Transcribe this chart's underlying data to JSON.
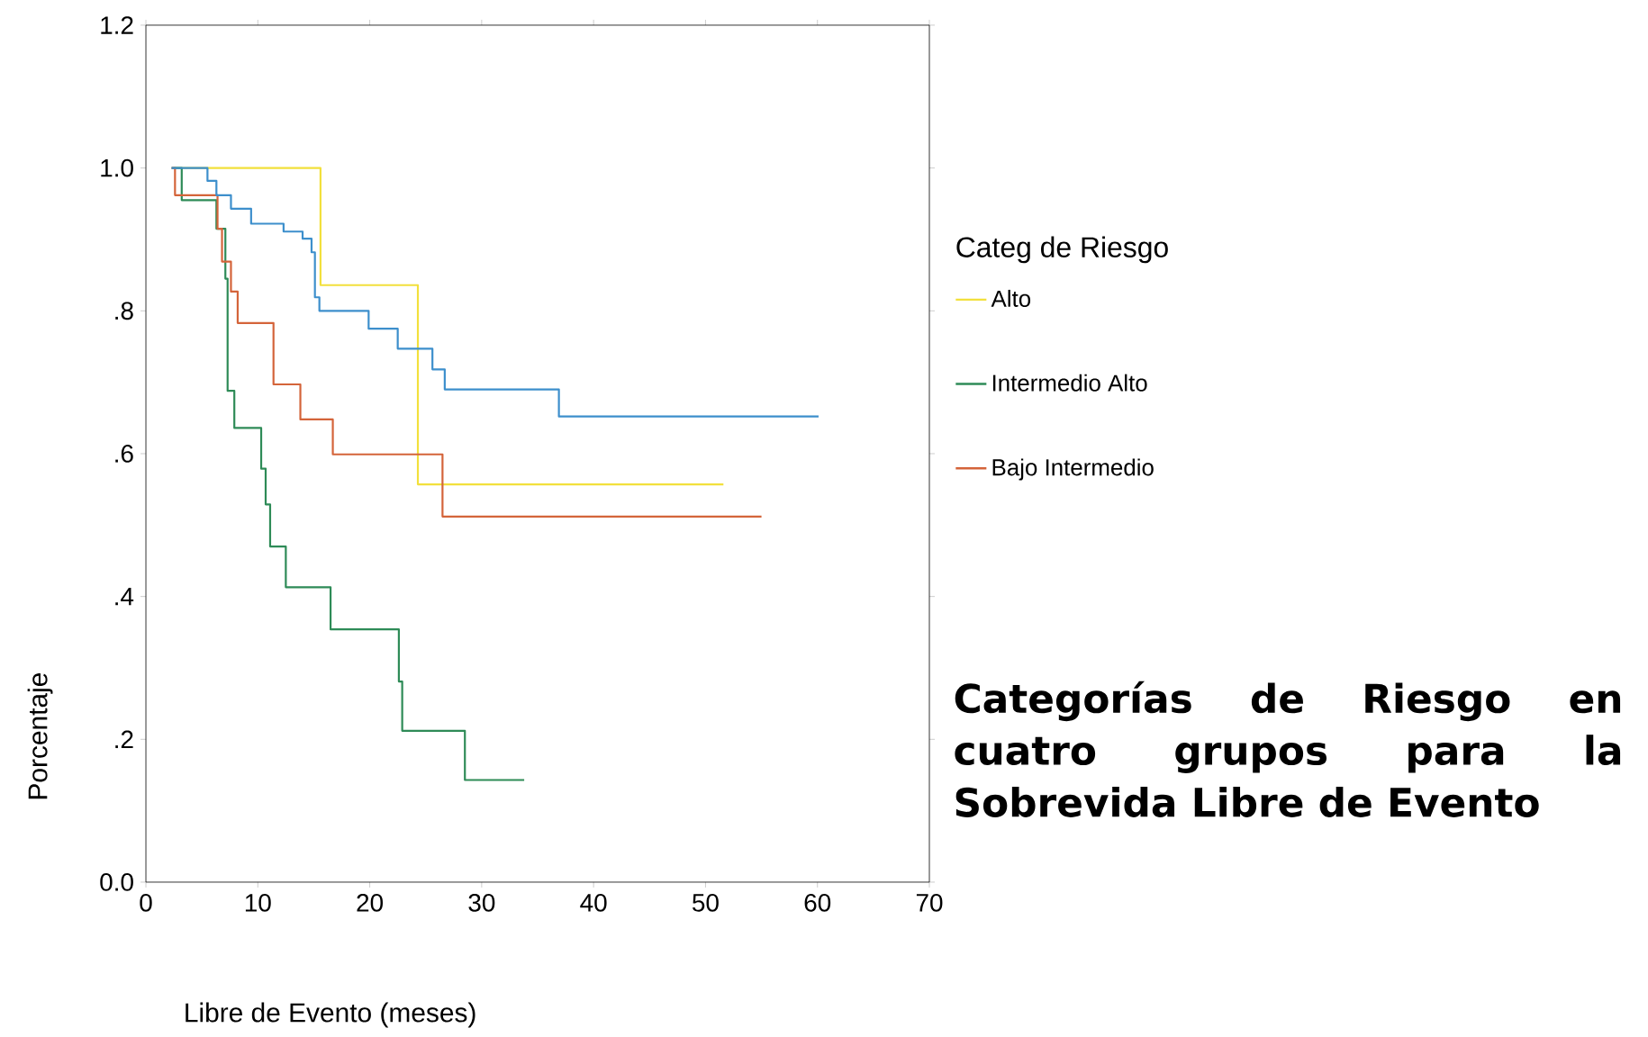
{
  "chart_data": {
    "type": "step",
    "xlabel": "Libre de Evento (meses)",
    "ylabel": "Porcentaje",
    "legend_title": "Categ de Riesgo",
    "annotations": [
      "Categorías de Riesgo en cuatro grupos para la Sobrevida Libre de Evento"
    ],
    "xlim": [
      0,
      70
    ],
    "ylim": [
      0,
      1.2
    ],
    "xticks": [
      0,
      10,
      20,
      30,
      40,
      50,
      60,
      70
    ],
    "yticks": [
      {
        "value": 0,
        "label": "0.0"
      },
      {
        "value": 0.2,
        "label": ".2"
      },
      {
        "value": 0.4,
        "label": ".4"
      },
      {
        "value": 0.6,
        "label": ".6"
      },
      {
        "value": 0.8,
        "label": ".8"
      },
      {
        "value": 1.0,
        "label": "1.0"
      },
      {
        "value": 1.2,
        "label": "1.2"
      }
    ],
    "grid": false,
    "legend": "right",
    "marker": "none",
    "line_style": "solid",
    "series": [
      {
        "name": "Alto",
        "color": "#f2e03c",
        "x": [
          2.5,
          15.6,
          24.3,
          51.6
        ],
        "values": [
          1.0,
          0.836,
          0.557,
          0.557
        ]
      },
      {
        "name": "Intermedio Alto",
        "color": "#2e8b57",
        "x": [
          2.3,
          3.2,
          6.3,
          7.1,
          7.3,
          7.9,
          10.3,
          10.7,
          11.1,
          12.5,
          16.5,
          22.6,
          22.9,
          28.5,
          33.8
        ],
        "values": [
          1.0,
          0.955,
          0.915,
          0.845,
          0.688,
          0.636,
          0.579,
          0.529,
          0.47,
          0.413,
          0.354,
          0.281,
          0.212,
          0.143,
          0.143
        ]
      },
      {
        "name": "Bajo Intermedio",
        "color": "#d4643a",
        "x": [
          2.3,
          2.6,
          6.4,
          6.8,
          7.6,
          8.2,
          11.4,
          13.8,
          16.7,
          26.5,
          55.0
        ],
        "values": [
          1.0,
          0.962,
          0.915,
          0.869,
          0.827,
          0.783,
          0.697,
          0.648,
          0.599,
          0.512,
          0.512
        ]
      },
      {
        "color": "#3d8fcc",
        "x": [
          2.3,
          5.5,
          6.3,
          7.6,
          9.4,
          12.3,
          14.0,
          14.8,
          15.1,
          15.5,
          19.9,
          22.5,
          25.6,
          26.7,
          36.9,
          60.1
        ],
        "values": [
          1.0,
          0.982,
          0.962,
          0.943,
          0.922,
          0.911,
          0.901,
          0.882,
          0.819,
          0.8,
          0.775,
          0.747,
          0.718,
          0.69,
          0.652,
          0.652
        ]
      }
    ]
  }
}
